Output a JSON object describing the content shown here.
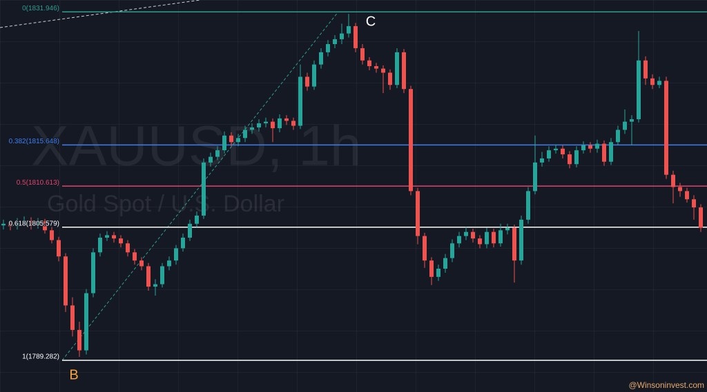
{
  "chart_data": {
    "type": "candlestick",
    "watermark_title": "XAUUSD, 1h",
    "watermark_subtitle": "Gold Spot / U.S. Dollar",
    "up_color": "#26a69a",
    "down_color": "#ef5350",
    "ylim": [
      1785.4,
      1833.4
    ],
    "levels": [
      {
        "label": "0(1831.946)",
        "value": 1831.946,
        "color": "#2f9e8f"
      },
      {
        "label": "0.382(1815.648)",
        "value": 1815.648,
        "color": "#3d7ff0"
      },
      {
        "label": "0.5(1810.613)",
        "value": 1810.613,
        "color": "#e0456a"
      },
      {
        "label": "0.618(1805.579)",
        "value": 1805.579,
        "color": "#ffffff"
      },
      {
        "label": "1(1789.282)",
        "value": 1789.282,
        "color": "#ffffff"
      }
    ],
    "annotations": [
      {
        "text": "C",
        "color": "#ffffff"
      },
      {
        "text": "B",
        "color": "#f7a23b"
      },
      {
        "text": "@Winsoninvest.com",
        "color": "#e8a86a"
      }
    ],
    "open": [
      1805.8,
      1806.0,
      1805.7,
      1806.2,
      1806.4,
      1805.8,
      1806.3,
      1805.2,
      1804.0,
      1802.0,
      1796.0,
      1793.0,
      1790.5,
      1797.5,
      1802.5,
      1804.3,
      1804.6,
      1804.2,
      1803.6,
      1802.5,
      1801.5,
      1800.8,
      1798.3,
      1798.6,
      1800.8,
      1801.5,
      1803.0,
      1804.3,
      1806.0,
      1807.0,
      1813.5,
      1814.2,
      1815.0,
      1816.8,
      1816.0,
      1816.5,
      1817.5,
      1817.8,
      1818.3,
      1818.5,
      1817.7,
      1818.9,
      1818.6,
      1818.0,
      1824.0,
      1822.8,
      1825.5,
      1827.0,
      1828.0,
      1828.6,
      1829.3,
      1830.2,
      1827.5,
      1826.0,
      1825.3,
      1825.0,
      1824.5,
      1823.0,
      1827.0,
      1822.5,
      1810.0,
      1804.5,
      1801.5,
      1799.5,
      1800.5,
      1801.8,
      1803.6,
      1804.5,
      1805.0,
      1804.2,
      1803.5,
      1805.0,
      1803.6,
      1805.2,
      1805.5,
      1801.5,
      1806.5,
      1810.0,
      1813.5,
      1814.0,
      1815.0,
      1815.2,
      1814.5,
      1813.3,
      1815.0,
      1815.6,
      1815.2,
      1815.8,
      1813.6,
      1816.0,
      1817.5,
      1818.5,
      1818.8,
      1826.0,
      1823.8,
      1823.0,
      1823.5,
      1812.0,
      1810.5,
      1810.0,
      1809.0,
      1808.0
    ],
    "high": [
      1806.5,
      1806.4,
      1806.7,
      1806.9,
      1806.8,
      1806.7,
      1806.6,
      1805.6,
      1804.4,
      1802.4,
      1797.0,
      1794.0,
      1798.0,
      1803.0,
      1804.8,
      1805.1,
      1805.0,
      1804.6,
      1804.0,
      1802.9,
      1801.9,
      1801.2,
      1799.2,
      1801.2,
      1802.0,
      1803.4,
      1804.8,
      1806.5,
      1807.5,
      1814.0,
      1814.7,
      1815.5,
      1817.3,
      1817.2,
      1817.0,
      1818.0,
      1818.3,
      1818.8,
      1819.0,
      1818.9,
      1819.4,
      1819.3,
      1819.0,
      1825.5,
      1824.5,
      1826.0,
      1827.5,
      1828.5,
      1829.1,
      1830.5,
      1831.7,
      1830.6,
      1828.0,
      1826.4,
      1825.7,
      1825.4,
      1824.9,
      1827.5,
      1827.4,
      1822.9,
      1810.4,
      1804.9,
      1801.9,
      1801.0,
      1802.3,
      1804.1,
      1805.0,
      1805.6,
      1805.4,
      1804.6,
      1805.5,
      1805.4,
      1806.0,
      1806.0,
      1805.9,
      1807.0,
      1810.5,
      1816.8,
      1814.8,
      1815.5,
      1815.7,
      1815.6,
      1814.9,
      1815.5,
      1816.1,
      1816.0,
      1816.3,
      1816.2,
      1816.5,
      1818.0,
      1820.0,
      1819.3,
      1829.6,
      1826.5,
      1824.3,
      1824.0,
      1824.0,
      1812.5,
      1811.0,
      1810.4,
      1809.5,
      1808.4
    ],
    "low": [
      1805.3,
      1805.2,
      1805.3,
      1805.8,
      1805.3,
      1805.4,
      1804.8,
      1803.6,
      1801.4,
      1795.2,
      1792.2,
      1789.7,
      1790.0,
      1797.0,
      1802.0,
      1803.9,
      1803.7,
      1803.1,
      1802.0,
      1801.0,
      1800.3,
      1797.8,
      1797.2,
      1798.2,
      1800.3,
      1801.0,
      1802.6,
      1803.9,
      1805.6,
      1806.6,
      1813.0,
      1813.8,
      1814.6,
      1815.5,
      1815.5,
      1816.0,
      1817.0,
      1817.3,
      1817.8,
      1816.0,
      1817.2,
      1818.1,
      1817.5,
      1817.6,
      1822.3,
      1822.4,
      1825.0,
      1826.5,
      1827.5,
      1828.0,
      1828.8,
      1827.0,
      1825.5,
      1824.8,
      1824.5,
      1822.0,
      1822.4,
      1822.6,
      1822.0,
      1809.5,
      1803.5,
      1800.6,
      1798.5,
      1799.0,
      1800.0,
      1801.3,
      1803.1,
      1804.0,
      1803.7,
      1803.0,
      1803.0,
      1803.1,
      1803.2,
      1804.7,
      1798.8,
      1801.0,
      1806.0,
      1809.6,
      1813.0,
      1813.6,
      1814.6,
      1814.0,
      1812.8,
      1812.9,
      1814.6,
      1814.7,
      1814.7,
      1813.1,
      1813.2,
      1815.6,
      1817.0,
      1815.6,
      1818.4,
      1823.0,
      1822.5,
      1822.6,
      1811.5,
      1808.5,
      1809.3,
      1808.6,
      1806.5,
      1805.0
    ],
    "close": [
      1806.0,
      1805.7,
      1806.2,
      1806.4,
      1805.8,
      1806.3,
      1805.2,
      1804.0,
      1802.0,
      1796.0,
      1793.0,
      1790.5,
      1797.5,
      1802.5,
      1804.3,
      1804.6,
      1804.2,
      1803.6,
      1802.5,
      1801.5,
      1800.8,
      1798.3,
      1798.6,
      1800.8,
      1801.5,
      1803.0,
      1804.3,
      1806.0,
      1807.0,
      1813.5,
      1814.2,
      1815.0,
      1816.8,
      1816.0,
      1816.5,
      1817.5,
      1817.8,
      1818.3,
      1818.5,
      1817.7,
      1818.9,
      1818.6,
      1818.0,
      1824.0,
      1822.8,
      1825.5,
      1827.0,
      1828.0,
      1828.6,
      1829.3,
      1830.2,
      1827.5,
      1826.0,
      1825.3,
      1825.0,
      1824.5,
      1823.0,
      1827.0,
      1822.5,
      1810.0,
      1804.5,
      1801.5,
      1799.5,
      1800.5,
      1801.8,
      1803.6,
      1804.5,
      1805.0,
      1804.2,
      1803.5,
      1805.0,
      1803.6,
      1805.2,
      1805.5,
      1801.5,
      1806.5,
      1810.0,
      1813.5,
      1814.0,
      1815.0,
      1815.2,
      1814.5,
      1813.3,
      1815.0,
      1815.6,
      1815.2,
      1815.8,
      1813.6,
      1816.0,
      1817.5,
      1818.5,
      1818.8,
      1826.0,
      1823.8,
      1823.0,
      1823.5,
      1812.0,
      1810.5,
      1810.0,
      1809.0,
      1808.0,
      1805.5
    ]
  }
}
